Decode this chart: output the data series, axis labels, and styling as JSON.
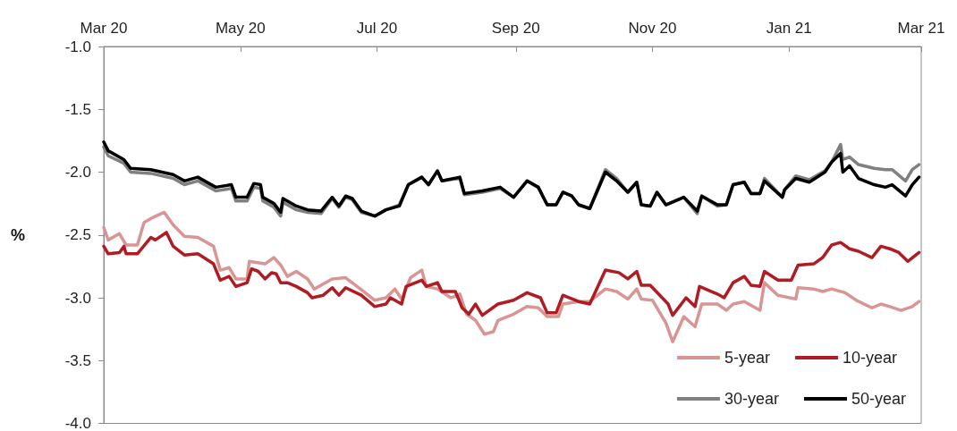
{
  "chart_data": {
    "type": "line",
    "ylabel": "%",
    "xlim": [
      "2020-03-01",
      "2021-03-01"
    ],
    "xticks": [
      {
        "value": "2020-03-01",
        "label": "Mar 20"
      },
      {
        "value": "2020-05-01",
        "label": "May 20"
      },
      {
        "value": "2020-07-01",
        "label": "Jul 20"
      },
      {
        "value": "2020-09-01",
        "label": "Sep 20"
      },
      {
        "value": "2020-11-01",
        "label": "Nov 20"
      },
      {
        "value": "2021-01-01",
        "label": "Jan 21"
      },
      {
        "value": "2021-03-01",
        "label": "Mar 21"
      }
    ],
    "ylim": [
      -4,
      -1
    ],
    "yticks": [
      {
        "value": -4,
        "label": "-4.0"
      },
      {
        "value": -3.5,
        "label": "-3.5"
      },
      {
        "value": -3,
        "label": "-3.0"
      },
      {
        "value": -2.5,
        "label": "-2.5"
      },
      {
        "value": -2,
        "label": "-2.0"
      },
      {
        "value": -1.5,
        "label": "-1.5"
      },
      {
        "value": -1,
        "label": "-1.0"
      }
    ],
    "grid": false,
    "legend": "bottom right",
    "marker": "none",
    "line_style": "solid",
    "series": [
      {
        "name": "5-year",
        "color": "#d99594",
        "x": [
          "2020-03-01",
          "2020-03-03",
          "2020-03-08",
          "2020-03-11",
          "2020-03-16",
          "2020-03-19",
          "2020-03-23",
          "2020-03-28",
          "2020-04-01",
          "2020-04-06",
          "2020-04-12",
          "2020-04-19",
          "2020-04-22",
          "2020-04-26",
          "2020-04-29",
          "2020-05-04",
          "2020-05-05",
          "2020-05-12",
          "2020-05-16",
          "2020-05-19",
          "2020-05-22",
          "2020-05-26",
          "2020-05-31",
          "2020-06-03",
          "2020-06-11",
          "2020-06-17",
          "2020-06-25",
          "2020-06-30",
          "2020-07-05",
          "2020-07-09",
          "2020-07-12",
          "2020-07-16",
          "2020-07-21",
          "2020-07-23",
          "2020-07-28",
          "2020-08-03",
          "2020-08-07",
          "2020-08-10",
          "2020-08-14",
          "2020-08-18",
          "2020-08-22",
          "2020-08-24",
          "2020-08-31",
          "2020-09-06",
          "2020-09-11",
          "2020-09-15",
          "2020-09-20",
          "2020-09-22",
          "2020-09-29",
          "2020-10-04",
          "2020-10-11",
          "2020-10-16",
          "2020-10-21",
          "2020-10-25",
          "2020-10-27",
          "2020-11-01",
          "2020-11-07",
          "2020-11-10",
          "2020-11-15",
          "2020-11-20",
          "2020-11-23",
          "2020-11-30",
          "2020-12-04",
          "2020-12-07",
          "2020-12-12",
          "2020-12-19",
          "2020-12-21",
          "2020-12-27",
          "2021-01-04",
          "2021-01-05",
          "2021-01-12",
          "2021-01-16",
          "2021-01-20",
          "2021-01-26",
          "2021-01-31",
          "2021-02-07",
          "2021-02-11",
          "2021-02-15",
          "2021-02-20",
          "2021-02-25",
          "2021-02-28"
        ],
        "values": [
          -2.44,
          -2.54,
          -2.49,
          -2.58,
          -2.58,
          -2.4,
          -2.36,
          -2.32,
          -2.42,
          -2.51,
          -2.52,
          -2.59,
          -2.78,
          -2.76,
          -2.85,
          -2.85,
          -2.71,
          -2.73,
          -2.68,
          -2.74,
          -2.83,
          -2.79,
          -2.85,
          -2.93,
          -2.85,
          -2.84,
          -2.95,
          -3.02,
          -3.0,
          -2.93,
          -3.01,
          -2.84,
          -2.78,
          -2.91,
          -2.93,
          -3.0,
          -2.97,
          -3.13,
          -3.18,
          -3.29,
          -3.27,
          -3.18,
          -3.13,
          -3.07,
          -3.08,
          -3.15,
          -3.15,
          -3.05,
          -3.03,
          -3.03,
          -2.93,
          -2.95,
          -3.01,
          -2.93,
          -3.01,
          -3.02,
          -3.2,
          -3.35,
          -3.15,
          -3.23,
          -3.05,
          -3.05,
          -3.1,
          -3.05,
          -3.03,
          -3.1,
          -2.88,
          -2.98,
          -3.01,
          -2.92,
          -2.93,
          -2.95,
          -2.93,
          -2.96,
          -3.02,
          -3.08,
          -3.05,
          -3.07,
          -3.1,
          -3.07,
          -3.03
        ]
      },
      {
        "name": "10-year",
        "color": "#b01c24",
        "x": [
          "2020-03-01",
          "2020-03-03",
          "2020-03-08",
          "2020-03-10",
          "2020-03-11",
          "2020-03-16",
          "2020-03-22",
          "2020-03-24",
          "2020-03-29",
          "2020-04-01",
          "2020-04-06",
          "2020-04-12",
          "2020-04-19",
          "2020-04-22",
          "2020-04-26",
          "2020-04-29",
          "2020-05-04",
          "2020-05-06",
          "2020-05-09",
          "2020-05-12",
          "2020-05-15",
          "2020-05-17",
          "2020-05-19",
          "2020-05-22",
          "2020-05-26",
          "2020-05-31",
          "2020-06-02",
          "2020-06-07",
          "2020-06-11",
          "2020-06-14",
          "2020-06-17",
          "2020-06-24",
          "2020-06-30",
          "2020-07-05",
          "2020-07-07",
          "2020-07-12",
          "2020-07-14",
          "2020-07-21",
          "2020-07-23",
          "2020-07-28",
          "2020-07-30",
          "2020-08-05",
          "2020-08-08",
          "2020-08-11",
          "2020-08-14",
          "2020-08-17",
          "2020-08-24",
          "2020-08-31",
          "2020-09-06",
          "2020-09-12",
          "2020-09-15",
          "2020-09-19",
          "2020-09-22",
          "2020-09-29",
          "2020-10-04",
          "2020-10-11",
          "2020-10-17",
          "2020-10-21",
          "2020-10-25",
          "2020-10-27",
          "2020-10-31",
          "2020-11-08",
          "2020-11-10",
          "2020-11-16",
          "2020-11-20",
          "2020-11-22",
          "2020-11-30",
          "2020-12-03",
          "2020-12-07",
          "2020-12-12",
          "2020-12-15",
          "2020-12-19",
          "2020-12-21",
          "2020-12-27",
          "2021-01-02",
          "2021-01-05",
          "2021-01-12",
          "2021-01-16",
          "2021-01-20",
          "2021-01-24",
          "2021-01-28",
          "2021-02-01",
          "2021-02-07",
          "2021-02-11",
          "2021-02-15",
          "2021-02-19",
          "2021-02-23",
          "2021-02-28"
        ],
        "values": [
          -2.59,
          -2.65,
          -2.64,
          -2.59,
          -2.65,
          -2.65,
          -2.52,
          -2.54,
          -2.48,
          -2.59,
          -2.66,
          -2.65,
          -2.73,
          -2.86,
          -2.83,
          -2.91,
          -2.88,
          -2.77,
          -2.79,
          -2.85,
          -2.8,
          -2.81,
          -2.88,
          -2.88,
          -2.91,
          -2.96,
          -3.0,
          -2.98,
          -2.92,
          -2.98,
          -2.92,
          -2.98,
          -3.07,
          -3.05,
          -3.0,
          -3.05,
          -2.91,
          -2.86,
          -2.91,
          -2.88,
          -2.95,
          -2.95,
          -3.08,
          -3.13,
          -3.05,
          -3.14,
          -3.05,
          -3.02,
          -2.96,
          -3.0,
          -3.12,
          -3.12,
          -2.98,
          -3.03,
          -3.05,
          -2.78,
          -2.8,
          -2.85,
          -2.79,
          -2.9,
          -2.9,
          -3.05,
          -3.14,
          -3.0,
          -3.07,
          -2.91,
          -2.97,
          -3.0,
          -2.88,
          -2.83,
          -2.9,
          -2.91,
          -2.79,
          -2.86,
          -2.86,
          -2.74,
          -2.73,
          -2.68,
          -2.58,
          -2.56,
          -2.61,
          -2.63,
          -2.68,
          -2.59,
          -2.61,
          -2.64,
          -2.71,
          -2.64
        ]
      },
      {
        "name": "30-year",
        "color": "#808080",
        "x": [
          "2020-03-01",
          "2020-03-03",
          "2020-03-10",
          "2020-03-13",
          "2020-03-22",
          "2020-04-01",
          "2020-04-06",
          "2020-04-12",
          "2020-04-20",
          "2020-04-27",
          "2020-04-29",
          "2020-05-04",
          "2020-05-07",
          "2020-05-10",
          "2020-05-11",
          "2020-05-16",
          "2020-05-19",
          "2020-05-20",
          "2020-05-26",
          "2020-05-31",
          "2020-06-06",
          "2020-06-11",
          "2020-06-14",
          "2020-06-17",
          "2020-06-20",
          "2020-06-24",
          "2020-06-30",
          "2020-07-05",
          "2020-07-11",
          "2020-07-15",
          "2020-07-21",
          "2020-07-24",
          "2020-07-28",
          "2020-07-30",
          "2020-08-07",
          "2020-08-09",
          "2020-08-17",
          "2020-08-25",
          "2020-08-31",
          "2020-09-06",
          "2020-09-11",
          "2020-09-15",
          "2020-09-19",
          "2020-09-22",
          "2020-09-26",
          "2020-09-29",
          "2020-10-04",
          "2020-10-11",
          "2020-10-16",
          "2020-10-21",
          "2020-10-25",
          "2020-10-27",
          "2020-10-31",
          "2020-11-03",
          "2020-11-07",
          "2020-11-15",
          "2020-11-21",
          "2020-11-23",
          "2020-11-30",
          "2020-12-04",
          "2020-12-07",
          "2020-12-12",
          "2020-12-15",
          "2020-12-19",
          "2020-12-21",
          "2020-12-29",
          "2020-12-30",
          "2021-01-04",
          "2021-01-10",
          "2021-01-17",
          "2021-01-20",
          "2021-01-24",
          "2021-01-25",
          "2021-01-28",
          "2021-02-01",
          "2021-02-08",
          "2021-02-13",
          "2021-02-16",
          "2021-02-22",
          "2021-02-25",
          "2021-02-28"
        ],
        "values": [
          -1.8,
          -1.87,
          -1.93,
          -2.0,
          -2.01,
          -2.05,
          -2.1,
          -2.07,
          -2.15,
          -2.13,
          -2.23,
          -2.23,
          -2.12,
          -2.13,
          -2.23,
          -2.28,
          -2.35,
          -2.24,
          -2.3,
          -2.32,
          -2.33,
          -2.21,
          -2.28,
          -2.2,
          -2.22,
          -2.32,
          -2.35,
          -2.3,
          -2.26,
          -2.1,
          -2.04,
          -2.1,
          -1.99,
          -2.07,
          -2.05,
          -2.18,
          -2.16,
          -2.13,
          -2.2,
          -2.07,
          -2.12,
          -2.26,
          -2.26,
          -2.16,
          -2.19,
          -2.26,
          -2.29,
          -1.98,
          -2.05,
          -2.16,
          -2.08,
          -2.26,
          -2.27,
          -2.16,
          -2.26,
          -2.2,
          -2.33,
          -2.19,
          -2.27,
          -2.26,
          -2.1,
          -2.08,
          -2.17,
          -2.17,
          -2.05,
          -2.2,
          -2.14,
          -2.03,
          -2.06,
          -1.99,
          -1.92,
          -1.78,
          -1.9,
          -1.88,
          -1.94,
          -1.97,
          -1.98,
          -1.98,
          -2.07,
          -1.98,
          -1.94
        ]
      },
      {
        "name": "50-year",
        "color": "#000000",
        "x": [
          "2020-03-01",
          "2020-03-03",
          "2020-03-10",
          "2020-03-13",
          "2020-03-22",
          "2020-04-01",
          "2020-04-06",
          "2020-04-12",
          "2020-04-20",
          "2020-04-27",
          "2020-04-29",
          "2020-05-04",
          "2020-05-07",
          "2020-05-10",
          "2020-05-11",
          "2020-05-16",
          "2020-05-19",
          "2020-05-20",
          "2020-05-26",
          "2020-05-31",
          "2020-06-06",
          "2020-06-11",
          "2020-06-14",
          "2020-06-17",
          "2020-06-20",
          "2020-06-24",
          "2020-06-30",
          "2020-07-05",
          "2020-07-11",
          "2020-07-15",
          "2020-07-21",
          "2020-07-24",
          "2020-07-28",
          "2020-07-30",
          "2020-08-07",
          "2020-08-09",
          "2020-08-17",
          "2020-08-25",
          "2020-08-31",
          "2020-09-06",
          "2020-09-11",
          "2020-09-15",
          "2020-09-19",
          "2020-09-22",
          "2020-09-26",
          "2020-09-29",
          "2020-10-04",
          "2020-10-11",
          "2020-10-16",
          "2020-10-21",
          "2020-10-25",
          "2020-10-27",
          "2020-10-31",
          "2020-11-03",
          "2020-11-07",
          "2020-11-15",
          "2020-11-21",
          "2020-11-23",
          "2020-11-30",
          "2020-12-04",
          "2020-12-07",
          "2020-12-12",
          "2020-12-15",
          "2020-12-19",
          "2020-12-21",
          "2020-12-29",
          "2020-12-30",
          "2021-01-04",
          "2021-01-10",
          "2021-01-17",
          "2021-01-20",
          "2021-01-24",
          "2021-01-25",
          "2021-01-28",
          "2021-02-01",
          "2021-02-08",
          "2021-02-13",
          "2021-02-16",
          "2021-02-22",
          "2021-02-25",
          "2021-02-28"
        ],
        "values": [
          -1.76,
          -1.83,
          -1.9,
          -1.97,
          -1.98,
          -2.02,
          -2.07,
          -2.04,
          -2.12,
          -2.1,
          -2.2,
          -2.2,
          -2.09,
          -2.1,
          -2.2,
          -2.25,
          -2.32,
          -2.21,
          -2.27,
          -2.3,
          -2.31,
          -2.2,
          -2.27,
          -2.19,
          -2.21,
          -2.31,
          -2.35,
          -2.3,
          -2.27,
          -2.1,
          -2.04,
          -2.1,
          -1.99,
          -2.07,
          -2.04,
          -2.17,
          -2.15,
          -2.12,
          -2.2,
          -2.07,
          -2.12,
          -2.26,
          -2.26,
          -2.16,
          -2.19,
          -2.26,
          -2.29,
          -2.0,
          -2.07,
          -2.16,
          -2.08,
          -2.26,
          -2.27,
          -2.16,
          -2.26,
          -2.2,
          -2.31,
          -2.19,
          -2.26,
          -2.26,
          -2.1,
          -2.08,
          -2.17,
          -2.17,
          -2.07,
          -2.2,
          -2.14,
          -2.05,
          -2.08,
          -2.0,
          -1.92,
          -1.85,
          -2.0,
          -1.95,
          -2.05,
          -2.1,
          -2.12,
          -2.1,
          -2.19,
          -2.1,
          -2.04
        ]
      }
    ]
  }
}
